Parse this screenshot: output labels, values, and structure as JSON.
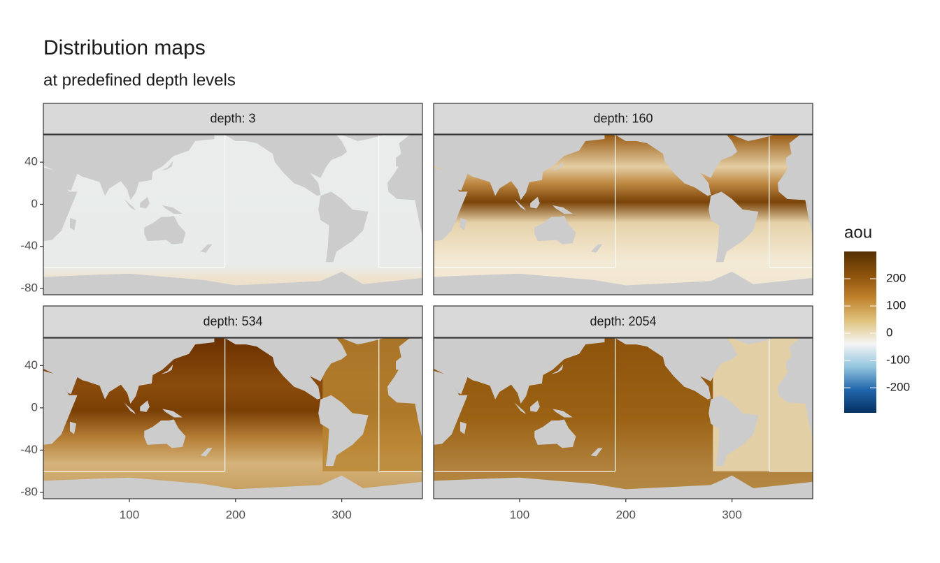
{
  "chart_data": {
    "type": "faceted-map",
    "title": "Distribution maps",
    "subtitle": "at predefined depth levels",
    "facets": [
      "depth: 3",
      "depth: 160",
      "depth: 534",
      "depth: 2054"
    ],
    "xlim": [
      19,
      376
    ],
    "xticks": [
      100,
      200,
      300
    ],
    "ylim": [
      -86,
      66
    ],
    "yticks": [
      40,
      0,
      -40,
      -80
    ],
    "legend": {
      "title": "aou",
      "lim": [
        -292,
        300
      ],
      "ticks": [
        200,
        100,
        0,
        -100,
        -200
      ],
      "colors": [
        "#053061",
        "#2166ac",
        "#92c5de",
        "#f5f5f5",
        "#dfc27d",
        "#bf812d",
        "#8c510a",
        "#543005"
      ]
    }
  }
}
